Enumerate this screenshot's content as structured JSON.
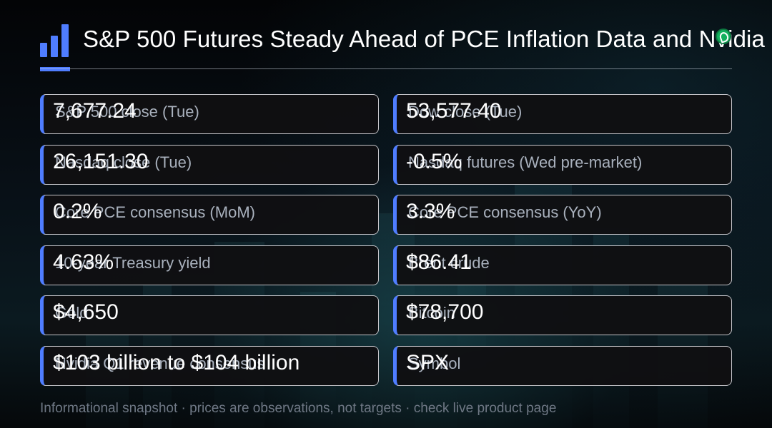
{
  "header": {
    "title": "S&P 500 Futures Steady Ahead of PCE Inflation Data and Nvidia",
    "logo_icon": "bar-chart-icon",
    "title_icon": "green-badge-icon",
    "accent_color": "#4f7dff"
  },
  "cards": [
    {
      "label": "S&P 500 close (Tue)",
      "value": "7,677.24"
    },
    {
      "label": "Dow close (Tue)",
      "value": "53,577.40"
    },
    {
      "label": "Nasdaq close (Tue)",
      "value": "26,151.30"
    },
    {
      "label": "Nasdaq futures (Wed pre-market)",
      "value": "-0.5%"
    },
    {
      "label": "Core PCE consensus (MoM)",
      "value": "0.2%"
    },
    {
      "label": "Core PCE consensus (YoY)",
      "value": "3.3%"
    },
    {
      "label": "10-year Treasury yield",
      "value": "4.63%"
    },
    {
      "label": "Brent crude",
      "value": "$86.41"
    },
    {
      "label": "Gold",
      "value": "$4,650"
    },
    {
      "label": "Bitcoin",
      "value": "$78,700"
    },
    {
      "label": "Nvidia Q1 revenue consensus",
      "value": "$103 billion to $104 billion"
    },
    {
      "label": "Symbol",
      "value": "SPX"
    }
  ],
  "footer": {
    "text": "Informational snapshot · prices are observations, not targets · check live product page"
  }
}
